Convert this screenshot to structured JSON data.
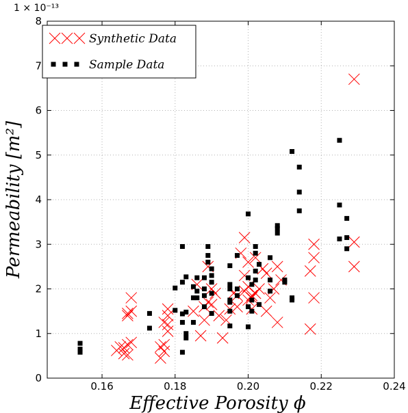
{
  "chart_data": {
    "type": "scatter",
    "xlabel": "Effective Porosity ϕ",
    "ylabel": "Permeability [m²]",
    "y_multiplier_label": "1 × 10⁻¹³",
    "xlim": [
      0.145,
      0.24
    ],
    "ylim": [
      0,
      8
    ],
    "xticks": [
      "0.16",
      "0.18",
      "0.20",
      "0.22",
      "0.24"
    ],
    "yticks": [
      "0",
      "1",
      "2",
      "3",
      "4",
      "5",
      "6",
      "7",
      "8"
    ],
    "grid": true,
    "legend_position": "top-left",
    "colors": {
      "synthetic": "#ff0000",
      "sample": "#000000"
    },
    "series": [
      {
        "name": "Synthetic Data",
        "marker": "x",
        "points": [
          [
            0.164,
            0.62
          ],
          [
            0.165,
            0.7
          ],
          [
            0.166,
            0.55
          ],
          [
            0.166,
            0.68
          ],
          [
            0.167,
            0.75
          ],
          [
            0.167,
            0.52
          ],
          [
            0.168,
            0.8
          ],
          [
            0.167,
            1.4
          ],
          [
            0.168,
            1.5
          ],
          [
            0.168,
            1.8
          ],
          [
            0.167,
            1.45
          ],
          [
            0.176,
            0.45
          ],
          [
            0.176,
            0.7
          ],
          [
            0.177,
            0.6
          ],
          [
            0.177,
            0.75
          ],
          [
            0.178,
            1.05
          ],
          [
            0.178,
            1.2
          ],
          [
            0.178,
            1.55
          ],
          [
            0.178,
            1.4
          ],
          [
            0.177,
            1.25
          ],
          [
            0.185,
            1.5
          ],
          [
            0.186,
            2.1
          ],
          [
            0.187,
            0.95
          ],
          [
            0.188,
            1.6
          ],
          [
            0.188,
            1.3
          ],
          [
            0.189,
            1.7
          ],
          [
            0.189,
            2.5
          ],
          [
            0.19,
            1.65
          ],
          [
            0.19,
            2.0
          ],
          [
            0.191,
            1.9
          ],
          [
            0.192,
            1.4
          ],
          [
            0.193,
            0.9
          ],
          [
            0.194,
            1.3
          ],
          [
            0.195,
            1.55
          ],
          [
            0.196,
            1.9
          ],
          [
            0.197,
            1.6
          ],
          [
            0.197,
            1.85
          ],
          [
            0.198,
            2.8
          ],
          [
            0.199,
            3.15
          ],
          [
            0.199,
            2.3
          ],
          [
            0.199,
            1.95
          ],
          [
            0.2,
            2.05
          ],
          [
            0.2,
            2.6
          ],
          [
            0.2,
            1.75
          ],
          [
            0.201,
            1.55
          ],
          [
            0.201,
            1.8
          ],
          [
            0.201,
            1.85
          ],
          [
            0.202,
            1.9
          ],
          [
            0.202,
            2.7
          ],
          [
            0.203,
            2.0
          ],
          [
            0.204,
            2.45
          ],
          [
            0.205,
            2.35
          ],
          [
            0.205,
            1.5
          ],
          [
            0.206,
            1.8
          ],
          [
            0.207,
            2.0
          ],
          [
            0.208,
            1.25
          ],
          [
            0.208,
            2.5
          ],
          [
            0.209,
            2.2
          ],
          [
            0.217,
            1.1
          ],
          [
            0.217,
            2.4
          ],
          [
            0.218,
            2.7
          ],
          [
            0.218,
            3.0
          ],
          [
            0.218,
            1.8
          ],
          [
            0.229,
            6.7
          ],
          [
            0.229,
            2.5
          ],
          [
            0.229,
            3.05
          ]
        ]
      },
      {
        "name": "Sample Data",
        "marker": "s",
        "points": [
          [
            0.154,
            0.78
          ],
          [
            0.154,
            0.65
          ],
          [
            0.154,
            0.58
          ],
          [
            0.173,
            1.45
          ],
          [
            0.173,
            1.12
          ],
          [
            0.18,
            2.02
          ],
          [
            0.18,
            1.52
          ],
          [
            0.182,
            2.95
          ],
          [
            0.182,
            2.15
          ],
          [
            0.182,
            1.44
          ],
          [
            0.182,
            1.25
          ],
          [
            0.182,
            0.58
          ],
          [
            0.183,
            2.27
          ],
          [
            0.183,
            1.48
          ],
          [
            0.183,
            1.0
          ],
          [
            0.183,
            0.9
          ],
          [
            0.185,
            2.05
          ],
          [
            0.185,
            1.8
          ],
          [
            0.185,
            1.25
          ],
          [
            0.186,
            2.25
          ],
          [
            0.186,
            1.95
          ],
          [
            0.186,
            1.8
          ],
          [
            0.188,
            2.0
          ],
          [
            0.188,
            1.85
          ],
          [
            0.188,
            1.6
          ],
          [
            0.188,
            2.25
          ],
          [
            0.189,
            2.95
          ],
          [
            0.189,
            2.75
          ],
          [
            0.189,
            2.6
          ],
          [
            0.19,
            2.45
          ],
          [
            0.19,
            2.3
          ],
          [
            0.19,
            2.15
          ],
          [
            0.19,
            1.9
          ],
          [
            0.19,
            1.45
          ],
          [
            0.195,
            2.52
          ],
          [
            0.195,
            2.1
          ],
          [
            0.195,
            2.0
          ],
          [
            0.195,
            1.75
          ],
          [
            0.195,
            1.7
          ],
          [
            0.195,
            1.5
          ],
          [
            0.195,
            1.17
          ],
          [
            0.197,
            2.75
          ],
          [
            0.197,
            2.0
          ],
          [
            0.197,
            1.85
          ],
          [
            0.2,
            3.68
          ],
          [
            0.2,
            2.25
          ],
          [
            0.2,
            1.6
          ],
          [
            0.2,
            1.15
          ],
          [
            0.201,
            2.1
          ],
          [
            0.201,
            1.75
          ],
          [
            0.201,
            1.5
          ],
          [
            0.202,
            2.95
          ],
          [
            0.202,
            2.8
          ],
          [
            0.202,
            2.4
          ],
          [
            0.202,
            2.2
          ],
          [
            0.203,
            2.55
          ],
          [
            0.203,
            1.65
          ],
          [
            0.206,
            2.7
          ],
          [
            0.206,
            2.2
          ],
          [
            0.206,
            1.95
          ],
          [
            0.208,
            3.42
          ],
          [
            0.208,
            3.35
          ],
          [
            0.208,
            3.25
          ],
          [
            0.21,
            2.2
          ],
          [
            0.21,
            2.15
          ],
          [
            0.212,
            5.08
          ],
          [
            0.212,
            1.8
          ],
          [
            0.212,
            1.75
          ],
          [
            0.214,
            4.73
          ],
          [
            0.214,
            4.17
          ],
          [
            0.214,
            3.75
          ],
          [
            0.225,
            5.33
          ],
          [
            0.225,
            3.88
          ],
          [
            0.225,
            3.12
          ],
          [
            0.227,
            3.58
          ],
          [
            0.227,
            3.15
          ],
          [
            0.227,
            2.9
          ]
        ]
      }
    ]
  }
}
